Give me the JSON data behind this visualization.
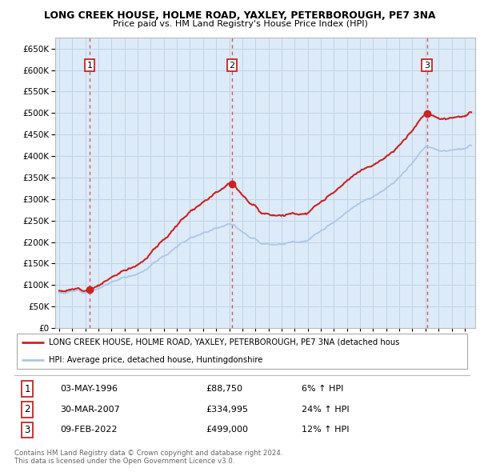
{
  "title1": "LONG CREEK HOUSE, HOLME ROAD, YAXLEY, PETERBOROUGH, PE7 3NA",
  "title2": "Price paid vs. HM Land Registry's House Price Index (HPI)",
  "ytick_values": [
    0,
    50000,
    100000,
    150000,
    200000,
    250000,
    300000,
    350000,
    400000,
    450000,
    500000,
    550000,
    600000,
    650000
  ],
  "xmin": 1993.7,
  "xmax": 2025.8,
  "ymin": 0,
  "ymax": 675000,
  "sale_dates": [
    1996.34,
    2007.22,
    2022.11
  ],
  "sale_prices": [
    88750,
    334995,
    499000
  ],
  "sale_labels": [
    "1",
    "2",
    "3"
  ],
  "hpi_color": "#aac8e8",
  "price_color": "#cc2222",
  "dashed_color": "#cc4444",
  "grid_color": "#c0d4e8",
  "plot_bg_color": "#ddeaf8",
  "legend_line1": "LONG CREEK HOUSE, HOLME ROAD, YAXLEY, PETERBOROUGH, PE7 3NA (detached hous",
  "legend_line2": "HPI: Average price, detached house, Huntingdonshire",
  "table_data": [
    [
      "1",
      "03-MAY-1996",
      "£88,750",
      "6% ↑ HPI"
    ],
    [
      "2",
      "30-MAR-2007",
      "£334,995",
      "24% ↑ HPI"
    ],
    [
      "3",
      "09-FEB-2022",
      "£499,000",
      "12% ↑ HPI"
    ]
  ],
  "footnote": "Contains HM Land Registry data © Crown copyright and database right 2024.\nThis data is licensed under the Open Government Licence v3.0.",
  "bg_color": "#ffffff"
}
